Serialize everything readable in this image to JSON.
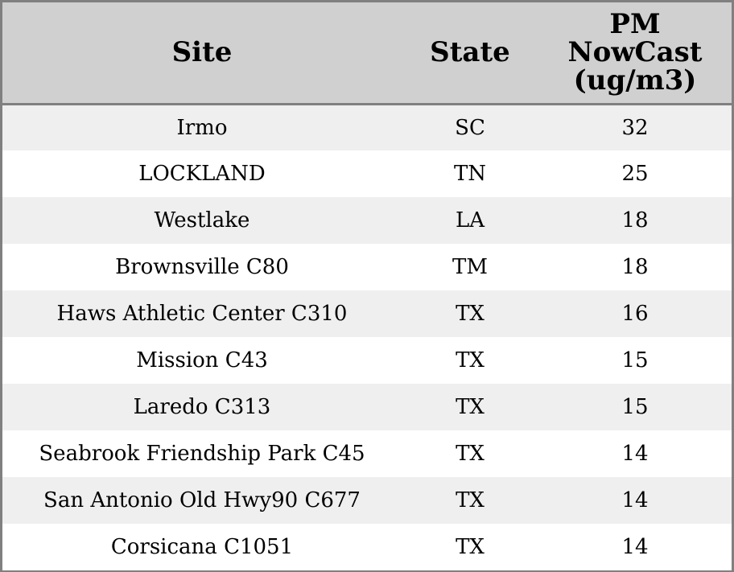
{
  "chart_data": {
    "type": "table",
    "columns": [
      "Site",
      "State",
      "PM NowCast (ug/m3)"
    ],
    "rows": [
      {
        "site": "Irmo",
        "state": "SC",
        "pm": "32"
      },
      {
        "site": "LOCKLAND",
        "state": "TN",
        "pm": "25"
      },
      {
        "site": "Westlake",
        "state": "LA",
        "pm": "18"
      },
      {
        "site": "Brownsville C80",
        "state": "TM",
        "pm": "18"
      },
      {
        "site": "Haws Athletic Center C310",
        "state": "TX",
        "pm": "16"
      },
      {
        "site": "Mission C43",
        "state": "TX",
        "pm": "15"
      },
      {
        "site": "Laredo C313",
        "state": "TX",
        "pm": "15"
      },
      {
        "site": "Seabrook Friendship Park C45",
        "state": "TX",
        "pm": "14"
      },
      {
        "site": "San Antonio Old Hwy90 C677",
        "state": "TX",
        "pm": "14"
      },
      {
        "site": "Corsicana C1051",
        "state": "TX",
        "pm": "14"
      }
    ],
    "header_color": "#d0d0d0",
    "stripe_color": "#efefef",
    "border_color": "#808080"
  }
}
